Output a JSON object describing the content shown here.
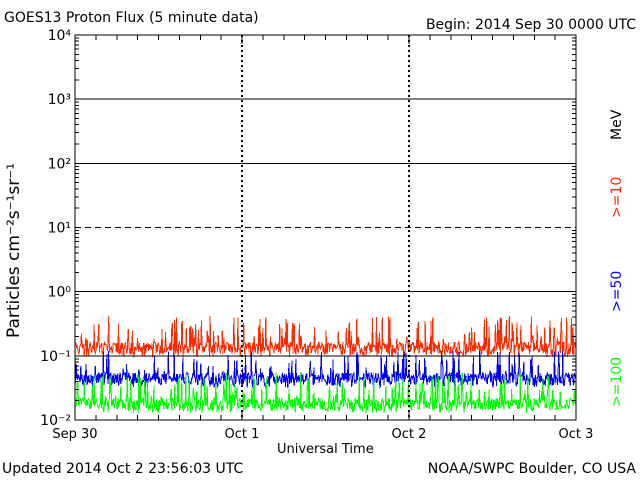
{
  "header": {
    "title": "GOES13 Proton Flux (5 minute data)",
    "begin": "Begin: 2014 Sep 30 0000 UTC"
  },
  "footer": {
    "updated": "Updated 2014 Oct  2 23:56:03 UTC",
    "credit": "NOAA/SWPC Boulder, CO USA"
  },
  "chart_data": {
    "type": "line",
    "title": "GOES13 Proton Flux (5 minute data)",
    "xlabel": "Universal Time",
    "ylabel": "Particles cm⁻²s⁻¹sr⁻¹",
    "yscale": "log",
    "ylim": [
      0.01,
      10000
    ],
    "yticks": [
      {
        "value": 0.01,
        "label": "10⁻²"
      },
      {
        "value": 0.1,
        "label": "10⁻¹"
      },
      {
        "value": 1,
        "label": "10⁰"
      },
      {
        "value": 10,
        "label": "10¹"
      },
      {
        "value": 100,
        "label": "10²"
      },
      {
        "value": 1000,
        "label": "10³"
      },
      {
        "value": 10000,
        "label": "10⁴"
      }
    ],
    "xticks": [
      "Sep 30",
      "Oct 1",
      "Oct 2",
      "Oct 3"
    ],
    "xlim_days": [
      0,
      3
    ],
    "grid": true,
    "threshold_line": 10,
    "legend": {
      "unit": "MeV",
      "entries": [
        {
          "label": ">=10",
          "color": "#ff2a00"
        },
        {
          "label": ">=50",
          "color": "#0000ff"
        },
        {
          "label": ">=100",
          "color": "#00ff00"
        }
      ]
    },
    "series": [
      {
        "name": ">=10",
        "color": "#ff2a00",
        "baseline": 0.135,
        "spike_max": 0.42
      },
      {
        "name": ">=50",
        "color": "#0000ff",
        "baseline": 0.045,
        "spike_max": 0.12
      },
      {
        "name": ">=100",
        "color": "#00ff00",
        "baseline": 0.018,
        "spike_max": 0.055
      }
    ]
  }
}
